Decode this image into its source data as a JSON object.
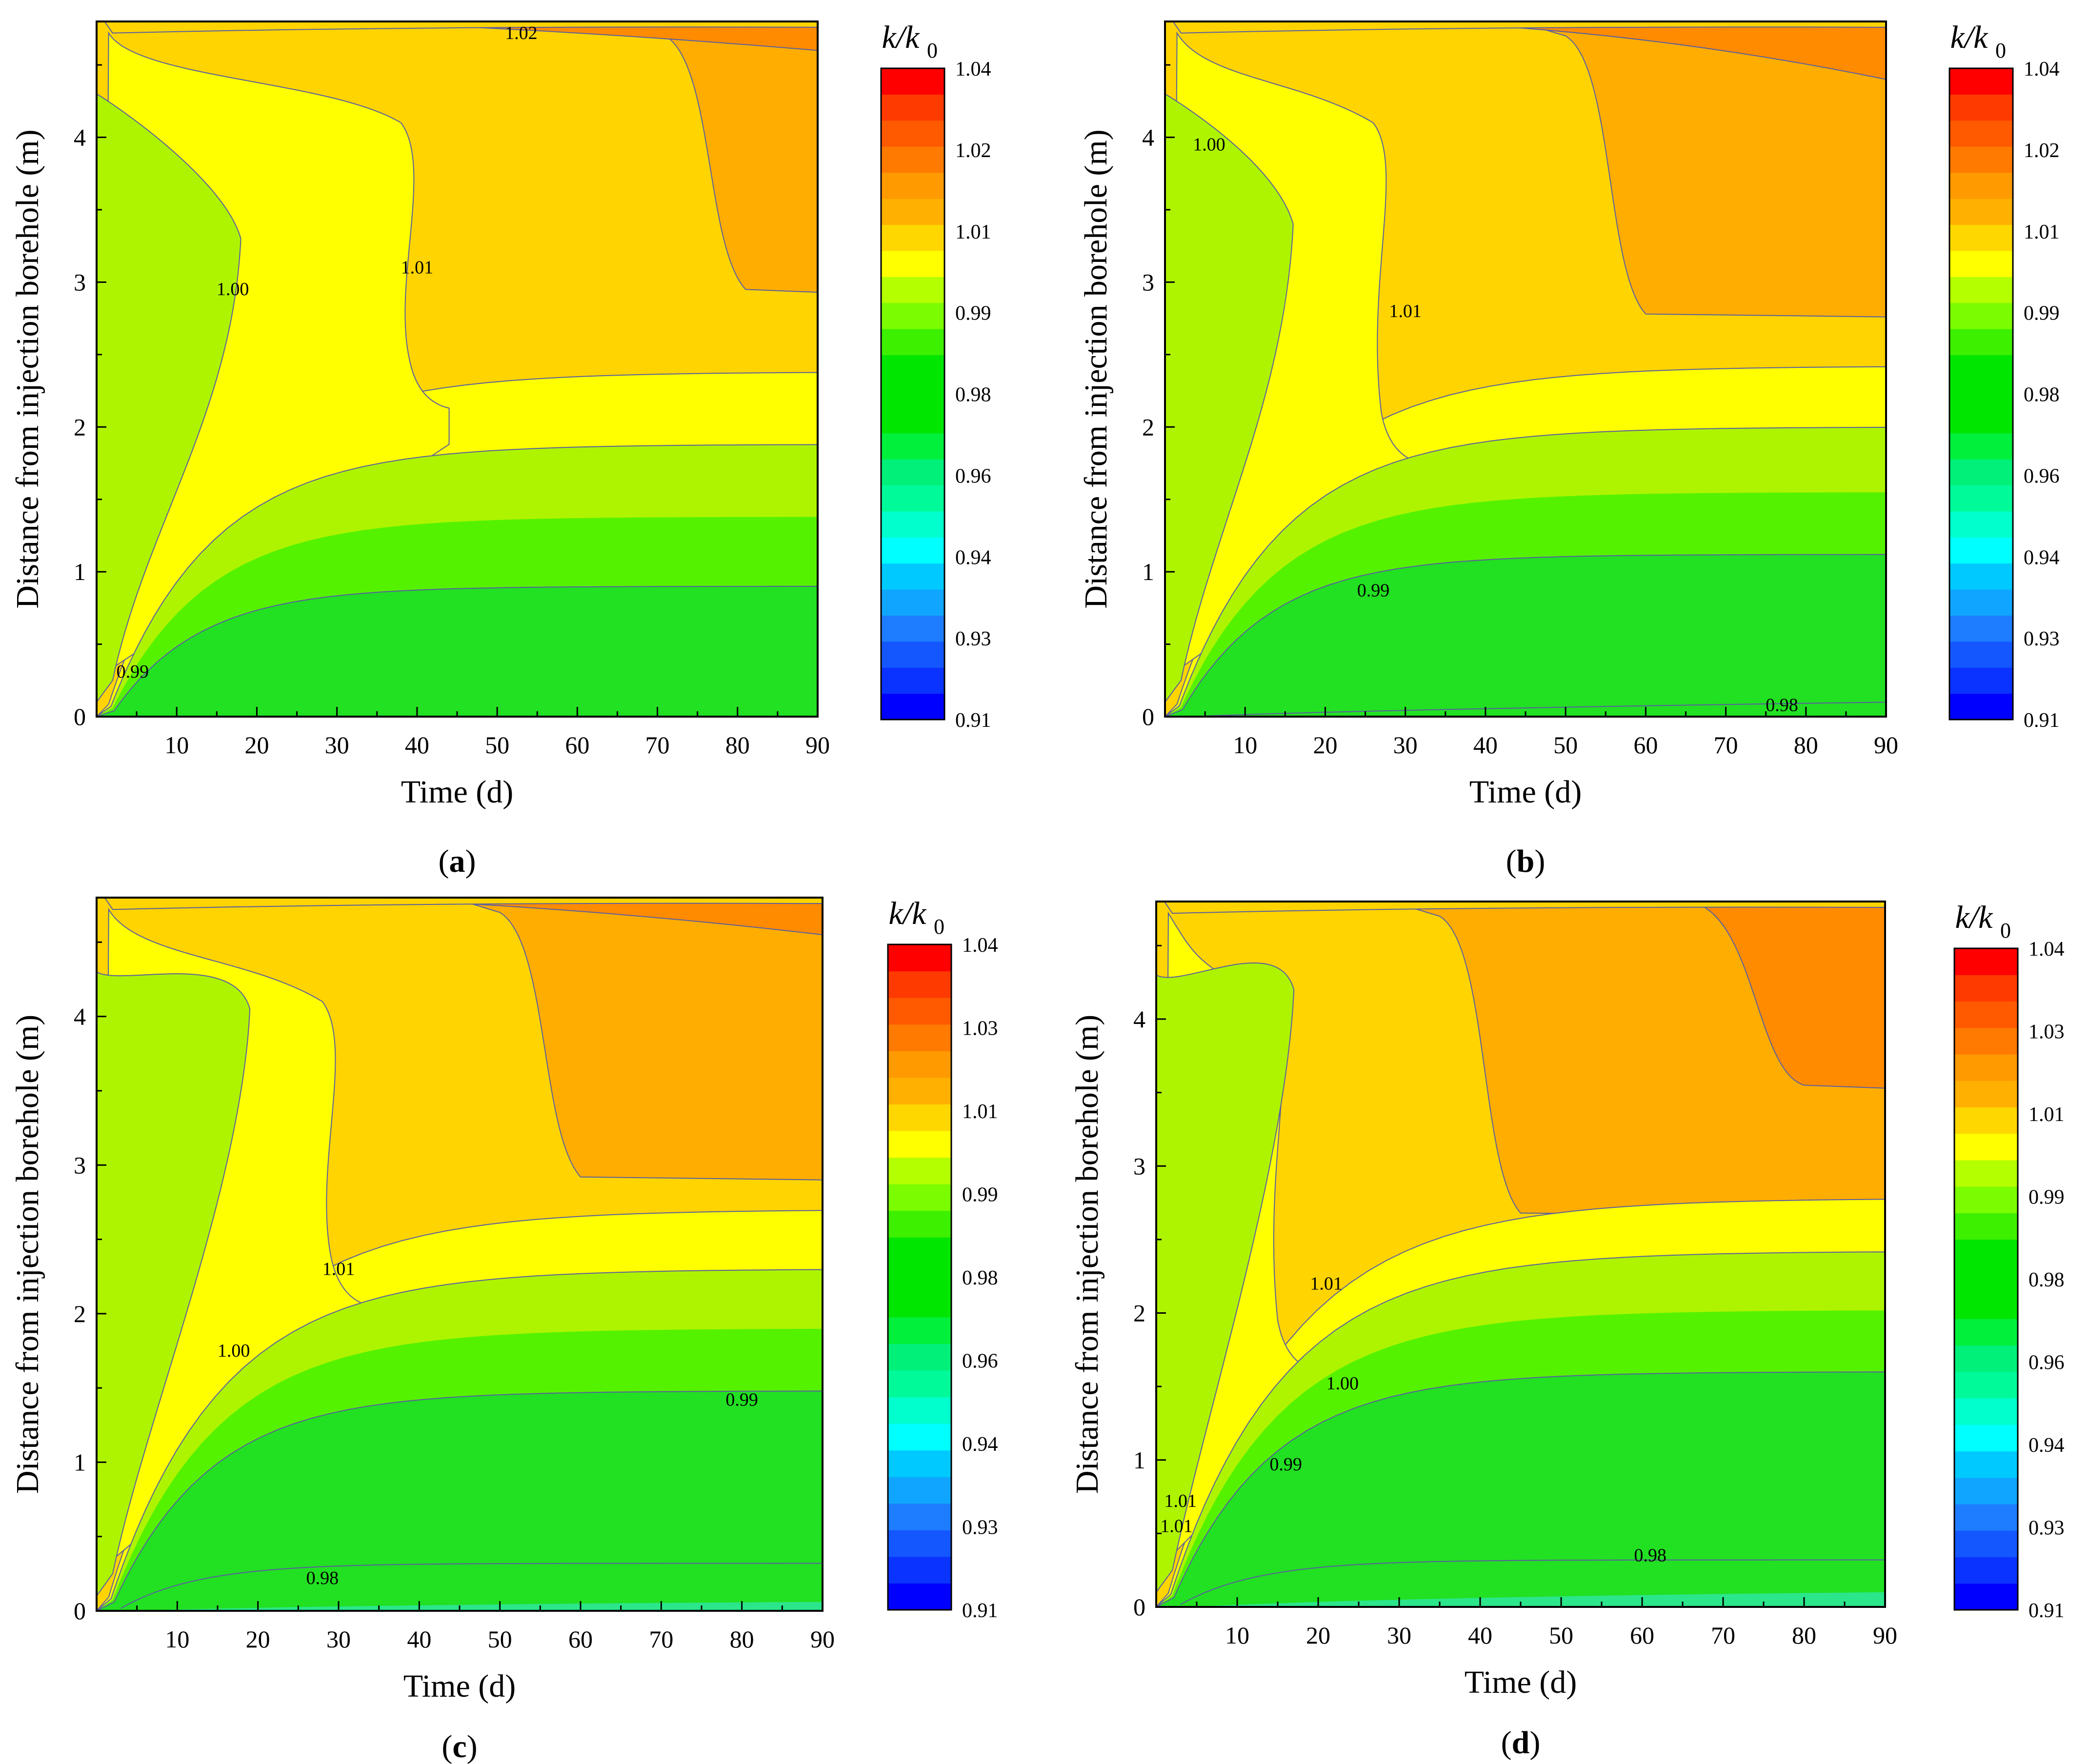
{
  "figure": {
    "x_range": [
      0,
      90
    ],
    "y_range": [
      0,
      4.8
    ],
    "x_ticks": [
      10,
      20,
      30,
      40,
      50,
      60,
      70,
      80,
      90
    ],
    "y_ticks": [
      0,
      1,
      2,
      3,
      4
    ],
    "colorbar_colors": [
      "#0000FF",
      "#0A33FF",
      "#1457FF",
      "#1E7CFF",
      "#10A6FF",
      "#00C9FF",
      "#00FFFF",
      "#00FFCC",
      "#00FA9A",
      "#00F07A",
      "#00F03C",
      "#00E600",
      "#00E600",
      "#00E600",
      "#3CF000",
      "#7CFC00",
      "#B4FF00",
      "#FFFF00",
      "#FFD700",
      "#FFB000",
      "#FF9A00",
      "#FF7A00",
      "#FF5A00",
      "#FF3A00",
      "#FF0000"
    ],
    "fill_colors": {
      "deep_green": "#22E022",
      "mid_green": "#55F200",
      "light_green": "#AEF400",
      "yellow": "#FFFF00",
      "gold": "#FFD400",
      "orange": "#FFAD00",
      "dark_orange": "#FF8B00",
      "teal": "#2BE68A",
      "contour_line": "#5A5FA0"
    }
  },
  "chart_data": [
    {
      "type": "contour",
      "panel_label": "(a)",
      "xlabel": "Time (d)",
      "ylabel": "Distance from injection borehole (m)",
      "colorbar_title_main": "k/k",
      "colorbar_title_sub": "0",
      "colorbar_range": [
        0.91,
        1.04
      ],
      "colorbar_tick_labels": [
        "0.91",
        "0.93",
        "0.94",
        "0.96",
        "0.98",
        "0.99",
        "1.01",
        "1.02",
        "1.04"
      ],
      "contour_labels": [
        {
          "text": "1.02",
          "x": 53,
          "y": 4.72
        },
        {
          "text": "1.00",
          "x": 17,
          "y": 2.95
        },
        {
          "text": "1.01",
          "x": 40,
          "y": 3.1
        },
        {
          "text": "0.99",
          "x": 4.5,
          "y": 0.31
        }
      ],
      "regions": {
        "green_top_y": 0.9,
        "lightgreen_top_y": 1.38,
        "midgreen_top_y": 1.88,
        "yellow_top_y": 2.38,
        "orange_knee_x": 79,
        "orange_floor_y": 2.95,
        "dark_orange_top_y": 4.6,
        "yellow_tongue_right_x": 41,
        "yellow_tongue_knee_y": 2.18,
        "green_tongue_x": 18,
        "green_tongue_y": 3.3
      }
    },
    {
      "type": "contour",
      "panel_label": "(b)",
      "xlabel": "Time (d)",
      "ylabel": "Distance from injection borehole (m)",
      "colorbar_title_main": "k/k",
      "colorbar_title_sub": "0",
      "colorbar_range": [
        0.91,
        1.04
      ],
      "colorbar_tick_labels": [
        "0.91",
        "0.93",
        "0.94",
        "0.96",
        "0.98",
        "0.99",
        "1.01",
        "1.02",
        "1.04"
      ],
      "contour_labels": [
        {
          "text": "1.00",
          "x": 5.5,
          "y": 3.95
        },
        {
          "text": "1.01",
          "x": 30,
          "y": 2.8
        },
        {
          "text": "0.99",
          "x": 26,
          "y": 0.87
        },
        {
          "text": "0.98",
          "x": 77,
          "y": 0.08
        }
      ],
      "regions": {
        "green_top_y": 1.12,
        "lightgreen_top_y": 1.55,
        "midgreen_top_y": 2.0,
        "yellow_top_y": 2.42,
        "orange_knee_x": 58,
        "orange_floor_y": 2.78,
        "dark_orange_top_y": 4.4,
        "yellow_tongue_right_x": 29,
        "yellow_tongue_knee_y": 1.8,
        "green_tongue_x": 16,
        "green_tongue_y": 3.4
      }
    },
    {
      "type": "contour",
      "panel_label": "(c)",
      "xlabel": "Time (d)",
      "ylabel": "Distance from injection borehole (m)",
      "colorbar_title_main": "k/k",
      "colorbar_title_sub": "0",
      "colorbar_range": [
        0.91,
        1.04
      ],
      "colorbar_tick_labels": [
        "0.91",
        "0.93",
        "0.94",
        "0.96",
        "0.98",
        "0.99",
        "1.01",
        "1.03",
        "1.04"
      ],
      "contour_labels": [
        {
          "text": "1.00",
          "x": 17,
          "y": 1.75
        },
        {
          "text": "1.01",
          "x": 30,
          "y": 2.3
        },
        {
          "text": "0.99",
          "x": 80,
          "y": 1.42
        },
        {
          "text": "0.98",
          "x": 28,
          "y": 0.22
        }
      ],
      "regions": {
        "green_top_y": 1.48,
        "lightgreen_top_y": 1.9,
        "midgreen_top_y": 2.3,
        "yellow_top_y": 2.7,
        "orange_knee_x": 58,
        "orange_floor_y": 2.92,
        "dark_orange_top_y": 4.55,
        "yellow_tongue_right_x": 31,
        "yellow_tongue_knee_y": 2.1,
        "green_tongue_x": 19,
        "green_tongue_y": 4.05,
        "teal_top_y": 0.06
      }
    },
    {
      "type": "contour",
      "panel_label": "(d)",
      "xlabel": "Time (d)",
      "ylabel": "Distance from injection borehole (m)",
      "colorbar_title_main": "k/k",
      "colorbar_title_sub": "0",
      "colorbar_range": [
        0.91,
        1.04
      ],
      "colorbar_tick_labels": [
        "0.91",
        "0.93",
        "0.94",
        "0.96",
        "0.98",
        "0.99",
        "1.01",
        "1.03",
        "1.04"
      ],
      "contour_labels": [
        {
          "text": "1.01",
          "x": 21,
          "y": 2.2
        },
        {
          "text": "1.00",
          "x": 23,
          "y": 1.52
        },
        {
          "text": "0.99",
          "x": 16,
          "y": 0.97
        },
        {
          "text": "1.01",
          "x": 3,
          "y": 0.72
        },
        {
          "text": "1.01",
          "x": 2.5,
          "y": 0.55
        },
        {
          "text": "0.98",
          "x": 61,
          "y": 0.35
        }
      ],
      "regions": {
        "green_top_y": 1.6,
        "lightgreen_top_y": 2.02,
        "midgreen_top_y": 2.42,
        "yellow_top_y": 2.78,
        "orange_knee_x": 43,
        "orange_floor_y": 2.68,
        "dark_orange_top_y": 3.55,
        "dark_orange_knee_x": 76,
        "yellow_tongue_right_x": 17,
        "yellow_tongue_knee_y": 1.65,
        "green_tongue_x": 17,
        "green_tongue_y": 4.2,
        "teal_top_y": 0.1
      }
    }
  ]
}
